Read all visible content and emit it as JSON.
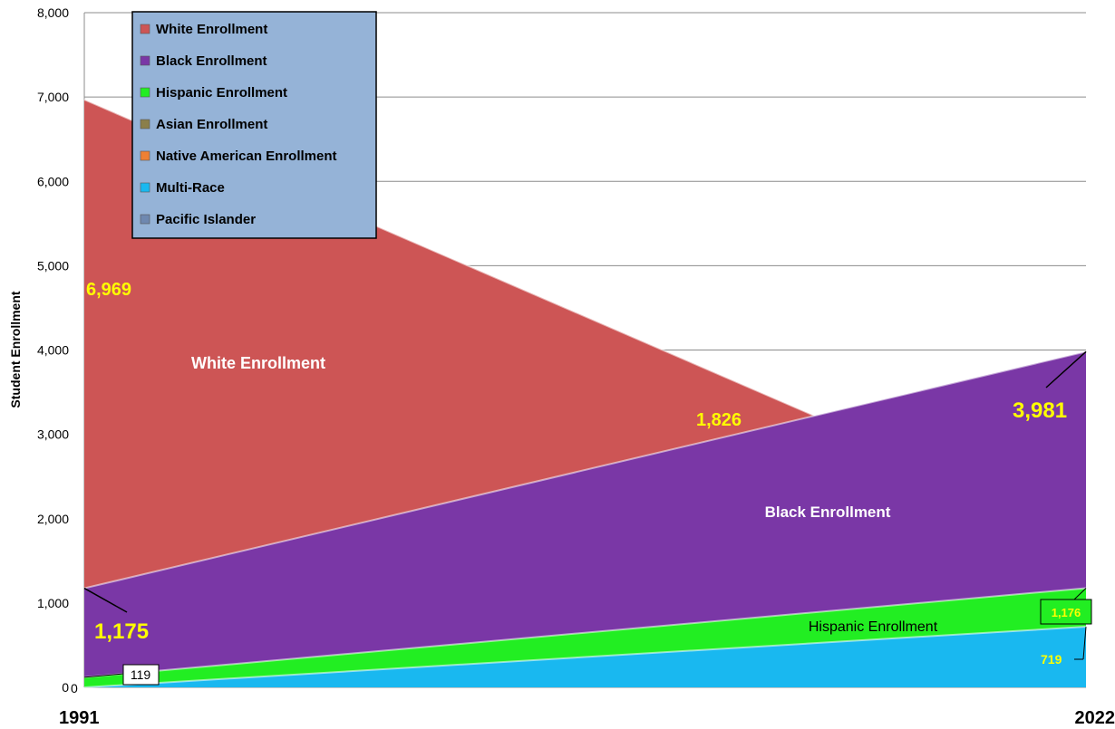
{
  "chart_data": {
    "type": "area",
    "x": [
      "1991",
      "2022"
    ],
    "ylabel": "Student Enrollment",
    "ylim": [
      0,
      8000
    ],
    "yticks": [
      "0",
      "1,000",
      "2,000",
      "3,000",
      "4,000",
      "5,000",
      "6,000",
      "7,000",
      "8,000"
    ],
    "grid": true,
    "legend_position": "top-left",
    "series": [
      {
        "name": "White Enrollment",
        "values": [
          6969,
          1826
        ],
        "color": "#cd5555"
      },
      {
        "name": "Black Enrollment",
        "values": [
          1175,
          3981
        ],
        "color": "#7a37a6"
      },
      {
        "name": "Hispanic Enrollment",
        "values": [
          119,
          1176
        ],
        "color": "#22ee22"
      },
      {
        "name": "Asian Enrollment",
        "values": [
          0,
          0
        ],
        "color": "#8b7f4a"
      },
      {
        "name": "Native American Enrollment",
        "values": [
          0,
          0
        ],
        "color": "#ee8033"
      },
      {
        "name": "Multi-Race",
        "values": [
          0,
          719
        ],
        "color": "#19b8f0"
      },
      {
        "name": "Pacific Islander",
        "values": [
          0,
          0
        ],
        "color": "#6f88b0"
      }
    ],
    "data_labels": {
      "white_start": "6,969",
      "white_end": "1,826",
      "black_start": "1,175",
      "black_end": "3,981",
      "hispanic_start": "119",
      "hispanic_end": "1,176",
      "multi_start": "0",
      "multi_end": "719"
    },
    "area_labels": {
      "white": "White Enrollment",
      "black": "Black Enrollment",
      "hispanic": "Hispanic Enrollment"
    }
  }
}
